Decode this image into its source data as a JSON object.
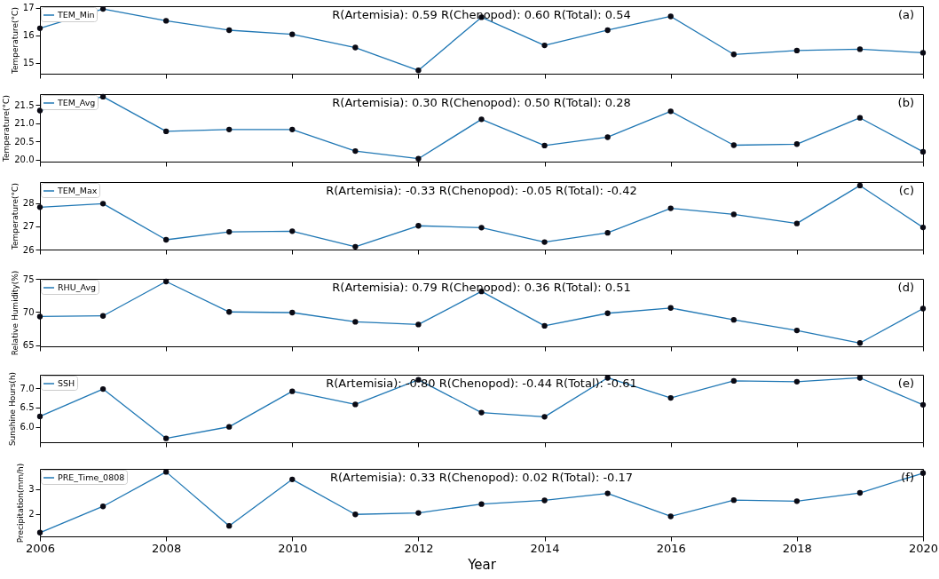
{
  "chart_data": [
    {
      "type": "line",
      "ylabel": "Temperature(°C)",
      "x": [
        2006,
        2007,
        2008,
        2009,
        2010,
        2011,
        2012,
        2013,
        2014,
        2015,
        2016,
        2017,
        2018,
        2019,
        2020
      ],
      "xlim": [
        2006,
        2020
      ],
      "xticks": [
        2006,
        2008,
        2010,
        2012,
        2014,
        2016,
        2018,
        2020
      ],
      "ylim": [
        14.6,
        17.05
      ],
      "yticks": [
        15,
        16,
        17
      ],
      "tick_labels": "y",
      "legend": "top left",
      "marker": "circle",
      "annotations": [
        "R(Artemisia): 0.59  R(Chenopod): 0.60  R(Total): 0.54",
        "(a)"
      ],
      "series": [
        {
          "name": "TEM_Min",
          "color": "#1f77b4",
          "values": [
            16.25,
            16.95,
            16.52,
            16.18,
            16.03,
            15.55,
            14.72,
            16.65,
            15.63,
            16.18,
            16.68,
            15.3,
            15.44,
            15.49,
            15.36
          ]
        }
      ]
    },
    {
      "type": "line",
      "ylabel": "Temperature(°C)",
      "x": [
        2006,
        2007,
        2008,
        2009,
        2010,
        2011,
        2012,
        2013,
        2014,
        2015,
        2016,
        2017,
        2018,
        2019,
        2020
      ],
      "xlim": [
        2006,
        2020
      ],
      "xticks": [
        2006,
        2008,
        2010,
        2012,
        2014,
        2016,
        2018,
        2020
      ],
      "ylim": [
        19.95,
        21.8
      ],
      "yticks": [
        {
          "value": 20,
          "label": "20.0"
        },
        20.5,
        {
          "value": 21,
          "label": "21.0"
        },
        21.5
      ],
      "tick_labels": "y",
      "legend": "top left",
      "marker": "circle",
      "annotations": [
        "R(Artemisia): 0.30  R(Chenopod): 0.50  R(Total): 0.28",
        "(b)"
      ],
      "series": [
        {
          "name": "TEM_Avg",
          "color": "#1f77b4",
          "values": [
            21.35,
            21.73,
            20.78,
            20.83,
            20.83,
            20.24,
            20.03,
            21.11,
            20.39,
            20.62,
            21.33,
            20.4,
            20.43,
            21.15,
            20.22
          ]
        }
      ]
    },
    {
      "type": "line",
      "ylabel": "Temperature(°C)",
      "x": [
        2006,
        2007,
        2008,
        2009,
        2010,
        2011,
        2012,
        2013,
        2014,
        2015,
        2016,
        2017,
        2018,
        2019,
        2020
      ],
      "xlim": [
        2006,
        2020
      ],
      "xticks": [
        2006,
        2008,
        2010,
        2012,
        2014,
        2016,
        2018,
        2020
      ],
      "ylim": [
        26,
        28.9
      ],
      "yticks": [
        26,
        27,
        28
      ],
      "tick_labels": "y",
      "legend": "top left",
      "marker": "circle",
      "annotations": [
        "R(Artemisia): -0.33  R(Chenopod): -0.05  R(Total): -0.42",
        "(c)"
      ],
      "series": [
        {
          "name": "TEM_Max",
          "color": "#1f77b4",
          "values": [
            27.82,
            27.97,
            26.42,
            26.76,
            26.79,
            26.12,
            27.02,
            26.94,
            26.32,
            26.72,
            27.77,
            27.51,
            27.12,
            28.75,
            26.95
          ]
        }
      ]
    },
    {
      "type": "line",
      "ylabel": "Relative Humidity(%)",
      "x": [
        2006,
        2007,
        2008,
        2009,
        2010,
        2011,
        2012,
        2013,
        2014,
        2015,
        2016,
        2017,
        2018,
        2019,
        2020
      ],
      "xlim": [
        2006,
        2020
      ],
      "xticks": [
        2006,
        2008,
        2010,
        2012,
        2014,
        2016,
        2018,
        2020
      ],
      "ylim": [
        64.8,
        75
      ],
      "yticks": [
        65,
        70,
        75
      ],
      "tick_labels": "y",
      "legend": "top left",
      "marker": "circle",
      "annotations": [
        "R(Artemisia): 0.79  R(Chenopod): 0.36  R(Total): 0.51",
        "(d)"
      ],
      "series": [
        {
          "name": "RHU_Avg",
          "color": "#1f77b4",
          "values": [
            69.3,
            69.4,
            74.6,
            70.0,
            69.9,
            68.5,
            68.1,
            73.1,
            67.9,
            69.8,
            70.6,
            68.8,
            67.2,
            65.3,
            70.5
          ]
        }
      ]
    },
    {
      "type": "line",
      "ylabel": "Sunshine Hours(h)",
      "x": [
        2006,
        2007,
        2008,
        2009,
        2010,
        2011,
        2012,
        2013,
        2014,
        2015,
        2016,
        2017,
        2018,
        2019,
        2020
      ],
      "xlim": [
        2006,
        2020
      ],
      "xticks": [
        2006,
        2008,
        2010,
        2012,
        2014,
        2016,
        2018,
        2020
      ],
      "ylim": [
        5.6,
        7.35
      ],
      "yticks": [
        {
          "value": 6,
          "label": "6.0"
        },
        6.5,
        {
          "value": 7,
          "label": "7.0"
        }
      ],
      "tick_labels": "y",
      "legend": "top left",
      "marker": "circle",
      "annotations": [
        "R(Artemisia): -0.80  R(Chenopod): -0.44  R(Total): -0.61",
        "(e)"
      ],
      "series": [
        {
          "name": "SSH",
          "color": "#1f77b4",
          "values": [
            6.27,
            6.98,
            5.7,
            6.0,
            6.92,
            6.58,
            7.22,
            6.37,
            6.26,
            7.27,
            6.75,
            7.19,
            7.17,
            7.27,
            6.57
          ]
        }
      ]
    },
    {
      "type": "line",
      "xlabel": "Year",
      "ylabel": "Precipitation(mm/h)",
      "x": [
        2006,
        2007,
        2008,
        2009,
        2010,
        2011,
        2012,
        2013,
        2014,
        2015,
        2016,
        2017,
        2018,
        2019,
        2020
      ],
      "xlim": [
        2006,
        2020
      ],
      "xticks": [
        2006,
        2008,
        2010,
        2012,
        2014,
        2016,
        2018,
        2020
      ],
      "ylim": [
        1.1,
        3.8
      ],
      "yticks": [
        2,
        3
      ],
      "legend": "top left",
      "marker": "circle",
      "annotations": [
        "R(Artemisia): 0.33  R(Chenopod): 0.02  R(Total): -0.17",
        "(f)"
      ],
      "series": [
        {
          "name": "PRE_Time_0808",
          "color": "#1f77b4",
          "values": [
            1.25,
            2.3,
            3.68,
            1.52,
            3.38,
            1.98,
            2.04,
            2.39,
            2.54,
            2.82,
            1.9,
            2.55,
            2.51,
            2.84,
            3.63
          ]
        }
      ]
    }
  ]
}
